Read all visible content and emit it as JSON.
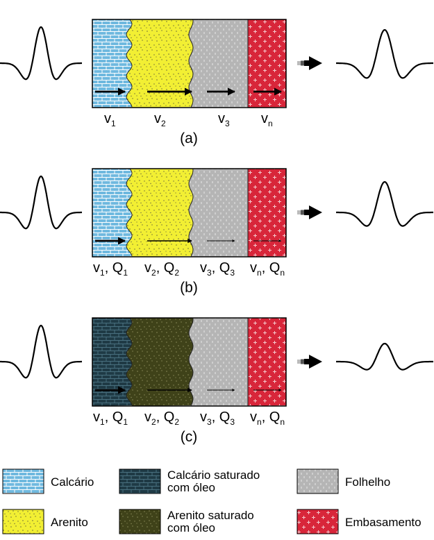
{
  "colors": {
    "calcario": "#6fb9df",
    "arenito": "#f2ef33",
    "folhelho": "#b5b5b5",
    "embasamento": "#d8263a",
    "calcario_oleo": "#1f3a45",
    "arenito_oleo": "#3f4219"
  },
  "panels": [
    {
      "caption": "(a)",
      "layers": [
        "calcario",
        "arenito",
        "folhelho",
        "embasamento"
      ],
      "labels": [
        {
          "v": "v",
          "vsub": "1"
        },
        {
          "v": "v",
          "vsub": "2"
        },
        {
          "v": "v",
          "vsub": "3"
        },
        {
          "v": "v",
          "vsub": "n"
        }
      ],
      "arrow_strength": [
        "thick",
        "thick",
        "thick",
        "thick"
      ],
      "output_wave": "strong"
    },
    {
      "caption": "(b)",
      "layers": [
        "calcario",
        "arenito",
        "folhelho",
        "embasamento"
      ],
      "labels": [
        {
          "v": "v",
          "vsub": "1",
          "q": "Q",
          "qsub": "1"
        },
        {
          "v": "v",
          "vsub": "2",
          "q": "Q",
          "qsub": "2"
        },
        {
          "v": "v",
          "vsub": "3",
          "q": "Q",
          "qsub": "3"
        },
        {
          "v": "v",
          "vsub": "n",
          "q": "Q",
          "qsub": "n"
        }
      ],
      "arrow_strength": [
        "thick",
        "medium",
        "thin",
        "thin"
      ],
      "output_wave": "medium"
    },
    {
      "caption": "(c)",
      "layers": [
        "calcario_oleo",
        "arenito_oleo",
        "folhelho",
        "embasamento"
      ],
      "labels": [
        {
          "v": "v",
          "vsub": "1",
          "q": "Q",
          "qsub": "1"
        },
        {
          "v": "v",
          "vsub": "2",
          "q": "Q",
          "qsub": "2"
        },
        {
          "v": "v",
          "vsub": "3",
          "q": "Q",
          "qsub": "3"
        },
        {
          "v": "v",
          "vsub": "n",
          "q": "Q",
          "qsub": "n"
        }
      ],
      "arrow_strength": [
        "thick",
        "medium",
        "thin",
        "thin"
      ],
      "output_wave": "weak"
    }
  ],
  "legend": [
    {
      "key": "calcario",
      "label": "Calcário"
    },
    {
      "key": "calcario_oleo",
      "label": "Calcário saturado com óleo"
    },
    {
      "key": "folhelho",
      "label": "Folhelho"
    },
    {
      "key": "arenito",
      "label": "Arenito"
    },
    {
      "key": "arenito_oleo",
      "label": "Arenito saturado com óleo"
    },
    {
      "key": "embasamento",
      "label": "Embasamento"
    }
  ]
}
